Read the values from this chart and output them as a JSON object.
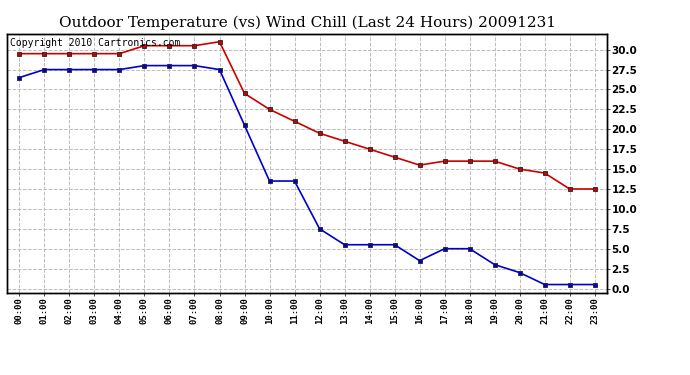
{
  "title": "Outdoor Temperature (vs) Wind Chill (Last 24 Hours) 20091231",
  "copyright": "Copyright 2010 Cartronics.com",
  "x_labels": [
    "00:00",
    "01:00",
    "02:00",
    "03:00",
    "04:00",
    "05:00",
    "06:00",
    "07:00",
    "08:00",
    "09:00",
    "10:00",
    "11:00",
    "12:00",
    "13:00",
    "14:00",
    "15:00",
    "16:00",
    "17:00",
    "18:00",
    "19:00",
    "20:00",
    "21:00",
    "22:00",
    "23:00"
  ],
  "temp_red": [
    29.5,
    29.5,
    29.5,
    29.5,
    29.5,
    30.5,
    30.5,
    30.5,
    31.0,
    24.5,
    22.5,
    21.0,
    19.5,
    18.5,
    17.5,
    16.5,
    15.5,
    16.0,
    16.0,
    16.0,
    15.0,
    14.5,
    12.5,
    12.5
  ],
  "wind_chill_blue": [
    26.5,
    27.5,
    27.5,
    27.5,
    27.5,
    28.0,
    28.0,
    28.0,
    27.5,
    20.5,
    13.5,
    13.5,
    7.5,
    5.5,
    5.5,
    5.5,
    3.5,
    5.0,
    5.0,
    3.0,
    2.0,
    0.5,
    0.5,
    0.5
  ],
  "red_color": "#cc0000",
  "blue_color": "#0000cc",
  "bg_color": "#ffffff",
  "grid_color": "#bbbbbb",
  "ylim": [
    -0.5,
    32.0
  ],
  "yticks": [
    0.0,
    2.5,
    5.0,
    7.5,
    10.0,
    12.5,
    15.0,
    17.5,
    20.0,
    22.5,
    25.0,
    27.5,
    30.0
  ],
  "title_fontsize": 11,
  "copyright_fontsize": 7
}
